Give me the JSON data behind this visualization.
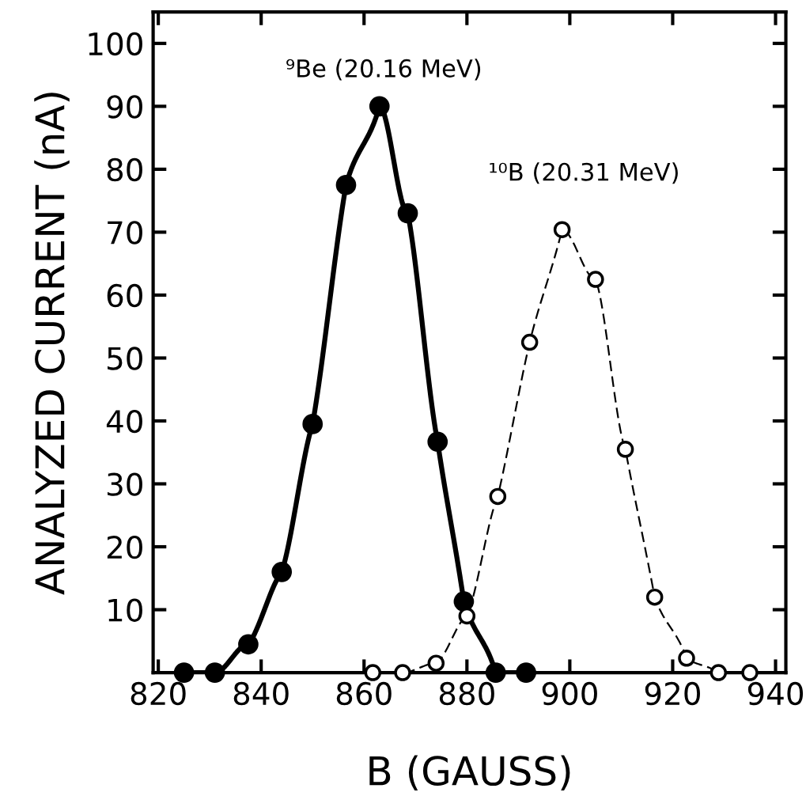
{
  "chart_data": {
    "type": "line",
    "xlabel": "B (GAUSS)",
    "ylabel": "ANALYZED CURRENT (nA)",
    "xlim": [
      819,
      942
    ],
    "ylim": [
      0,
      105
    ],
    "xticks": [
      820,
      840,
      860,
      880,
      900,
      920,
      940
    ],
    "yticks": [
      10,
      20,
      30,
      40,
      50,
      60,
      70,
      80,
      90,
      100
    ],
    "grid": false,
    "legend": false,
    "marker": "circle",
    "series": [
      {
        "name": "⁹Be (20.16 MeV)",
        "color": "#000000",
        "line_style": "solid",
        "x": [
          825,
          831,
          837.5,
          844,
          850,
          856.5,
          863,
          868.5,
          874.3,
          879.4,
          885.6,
          891.5
        ],
        "values": [
          0,
          0,
          4.5,
          16,
          39.5,
          77.5,
          90,
          73,
          36.7,
          11.3,
          0,
          0
        ]
      },
      {
        "name": "¹⁰B (20.31 MeV)",
        "color": "#000000",
        "line_style": "dashed",
        "x": [
          861.7,
          867.5,
          874,
          880,
          886,
          892.2,
          898.5,
          905,
          910.8,
          916.5,
          922.7,
          928.9,
          935
        ],
        "values": [
          0,
          0,
          1.5,
          9,
          28,
          52.5,
          70.4,
          62.5,
          35.5,
          12,
          2.3,
          0,
          0
        ]
      }
    ]
  }
}
